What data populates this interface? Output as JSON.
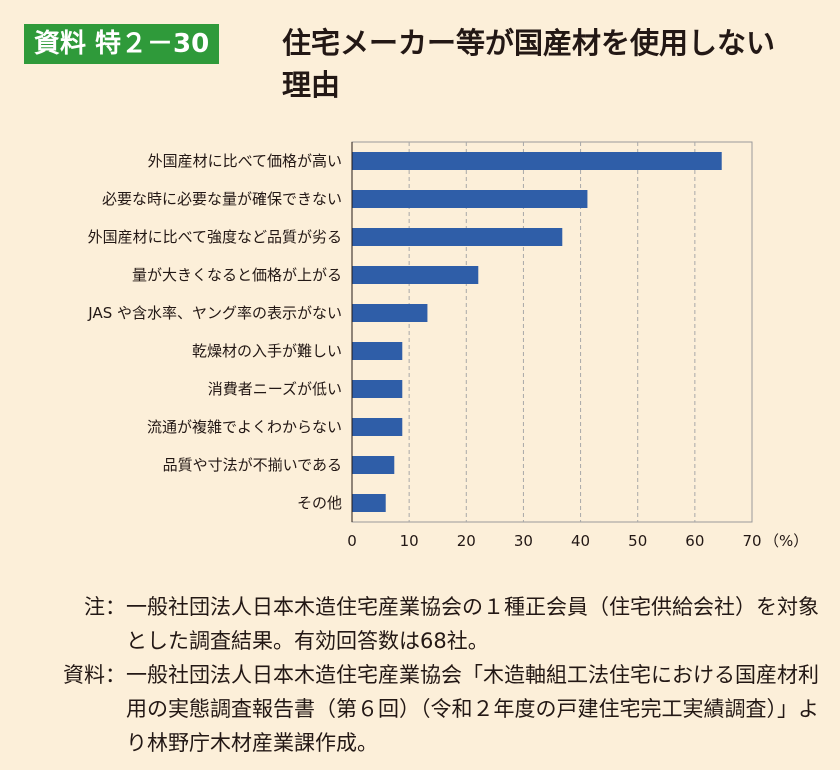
{
  "header": {
    "badge": "資料 特２－30",
    "title": "住宅メーカー等が国産材を使用しない理由"
  },
  "chart_data": {
    "type": "bar",
    "orientation": "horizontal",
    "categories": [
      "外国産材に比べて価格が高い",
      "必要な時に必要な量が確保できない",
      "外国産材に比べて強度など品質が劣る",
      "量が大きくなると価格が上がる",
      "JAS や含水率、ヤング率の表示がない",
      "乾燥材の入手が難しい",
      "消費者ニーズが低い",
      "流通が複雑でよくわからない",
      "品質や寸法が不揃いである",
      "その他"
    ],
    "values": [
      64.7,
      41.2,
      36.8,
      22.1,
      13.2,
      8.8,
      8.8,
      8.8,
      7.4,
      5.9
    ],
    "xlim": [
      0,
      70
    ],
    "xticks": [
      "0",
      "10",
      "20",
      "30",
      "40",
      "50",
      "60",
      "70"
    ],
    "xunit": "（%）",
    "grid": true,
    "bar_color": "#2f5ea8"
  },
  "notes": [
    {
      "label": "注：",
      "text": "一般社団法人日本木造住宅産業協会の１種正会員（住宅供給会社）を対象とした調査結果。有効回答数は68社。"
    },
    {
      "label": "資料：",
      "text": "一般社団法人日本木造住宅産業協会「木造軸組工法住宅における国産材利用の実態調査報告書（第６回）（令和２年度の戸建住宅完工実績調査）」より林野庁木材産業課作成。"
    }
  ]
}
